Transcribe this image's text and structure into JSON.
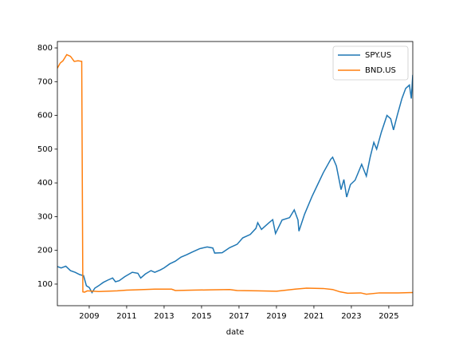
{
  "chart_data": {
    "type": "line",
    "xlabel": "date",
    "xlim": [
      2007.3,
      2026.28
    ],
    "ylim": [
      36,
      819
    ],
    "xticks": [
      2009,
      2011,
      2013,
      2015,
      2017,
      2019,
      2021,
      2023,
      2025
    ],
    "yticks": [
      100,
      200,
      300,
      400,
      500,
      600,
      700,
      800
    ],
    "legend": "upper right",
    "series": [
      {
        "name": "SPY.US",
        "color": "#1f77b4",
        "x": [
          2007.3,
          2007.5,
          2007.75,
          2008.0,
          2008.25,
          2008.5,
          2008.7,
          2008.85,
          2009.0,
          2009.15,
          2009.3,
          2009.5,
          2009.75,
          2010.0,
          2010.25,
          2010.4,
          2010.6,
          2010.9,
          2011.3,
          2011.6,
          2011.75,
          2012.0,
          2012.3,
          2012.5,
          2012.8,
          2013.0,
          2013.3,
          2013.6,
          2013.9,
          2014.2,
          2014.5,
          2014.9,
          2015.3,
          2015.6,
          2015.7,
          2016.1,
          2016.5,
          2016.9,
          2017.2,
          2017.6,
          2017.9,
          2018.0,
          2018.2,
          2018.6,
          2018.8,
          2018.95,
          2019.3,
          2019.7,
          2019.95,
          2020.15,
          2020.2,
          2020.5,
          2020.9,
          2021.2,
          2021.5,
          2021.9,
          2022.0,
          2022.2,
          2022.45,
          2022.6,
          2022.75,
          2022.95,
          2023.2,
          2023.55,
          2023.8,
          2024.0,
          2024.2,
          2024.35,
          2024.6,
          2024.9,
          2025.1,
          2025.25,
          2025.45,
          2025.7,
          2025.9,
          2026.1,
          2026.2,
          2026.28
        ],
        "values": [
          152,
          148,
          153,
          140,
          135,
          128,
          125,
          95,
          90,
          75,
          88,
          95,
          105,
          112,
          118,
          107,
          110,
          122,
          135,
          132,
          118,
          130,
          140,
          135,
          142,
          148,
          160,
          168,
          180,
          187,
          195,
          205,
          210,
          207,
          192,
          193,
          208,
          218,
          237,
          247,
          265,
          282,
          262,
          282,
          291,
          250,
          290,
          297,
          320,
          290,
          257,
          307,
          360,
          395,
          430,
          470,
          476,
          450,
          380,
          410,
          358,
          395,
          408,
          455,
          420,
          475,
          520,
          500,
          550,
          600,
          590,
          557,
          600,
          650,
          680,
          690,
          650,
          720
        ]
      },
      {
        "name": "BND.US",
        "color": "#ff7f0e",
        "x": [
          2007.3,
          2007.45,
          2007.6,
          2007.8,
          2008.0,
          2008.2,
          2008.4,
          2008.6,
          2008.66,
          2008.75,
          2008.9,
          2009.5,
          2010.5,
          2011.0,
          2011.5,
          2012.5,
          2013.4,
          2013.6,
          2014.5,
          2015.5,
          2016.5,
          2016.9,
          2018.0,
          2019.0,
          2020.0,
          2020.6,
          2021.5,
          2022.0,
          2022.4,
          2022.8,
          2023.5,
          2023.8,
          2024.5,
          2025.5,
          2026.28
        ],
        "values": [
          740,
          755,
          762,
          780,
          775,
          760,
          762,
          760,
          77,
          76,
          80,
          78,
          80,
          82,
          83,
          85,
          85,
          81,
          82,
          83,
          84,
          81,
          80,
          79,
          85,
          88,
          87,
          84,
          77,
          73,
          74,
          70,
          74,
          74,
          75
        ]
      }
    ]
  }
}
